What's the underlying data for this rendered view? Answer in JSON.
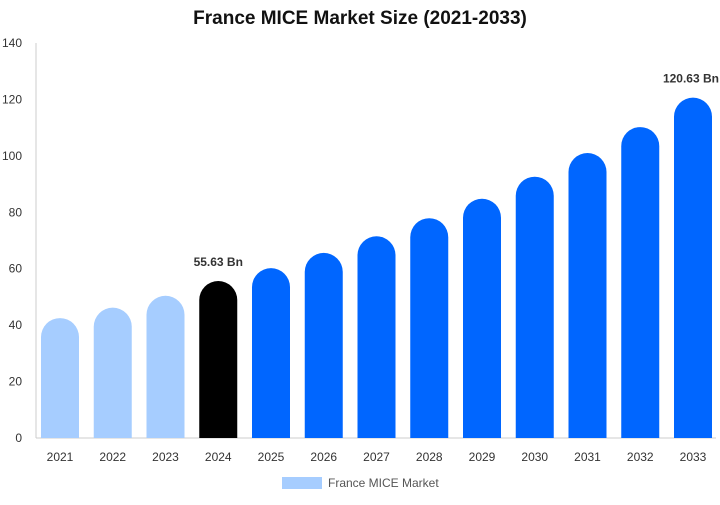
{
  "chart_data": {
    "type": "bar",
    "title": "France MICE Market Size (2021-2033)",
    "xlabel": "",
    "ylabel": "",
    "categories": [
      "2021",
      "2022",
      "2023",
      "2024",
      "2025",
      "2026",
      "2027",
      "2028",
      "2029",
      "2030",
      "2031",
      "2032",
      "2033"
    ],
    "series": [
      {
        "name": "France MICE Market",
        "values": [
          42.5,
          46.2,
          50.4,
          55.63,
          60.2,
          65.6,
          71.5,
          77.9,
          84.8,
          92.6,
          101.0,
          110.2,
          120.63
        ]
      }
    ],
    "ylim": [
      0,
      140
    ],
    "yticks": [
      0,
      20,
      40,
      60,
      80,
      100,
      120,
      140
    ],
    "grid": false,
    "legend_position": "bottom",
    "data_labels": [
      {
        "category": "2024",
        "text": "55.63 Bn"
      },
      {
        "category": "2033",
        "text": "120.63 Bn"
      }
    ],
    "colors": {
      "historical": "#a6cdff",
      "current": "#000000",
      "forecast": "#0066ff",
      "legend_swatch": "#a6cdff",
      "axis": "#cccccc",
      "tick_text": "#333333"
    },
    "color_segments": {
      "historical": [
        "2021",
        "2022",
        "2023"
      ],
      "current": [
        "2024"
      ],
      "forecast": [
        "2025",
        "2026",
        "2027",
        "2028",
        "2029",
        "2030",
        "2031",
        "2032",
        "2033"
      ]
    }
  }
}
